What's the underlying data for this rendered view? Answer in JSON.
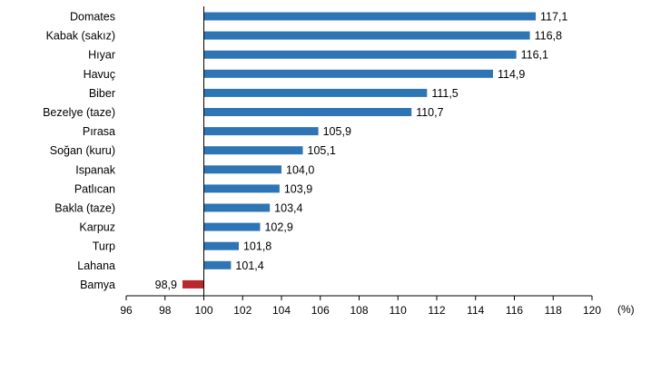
{
  "chart_data": {
    "type": "bar",
    "orientation": "horizontal",
    "baseline": 100,
    "categories": [
      "Domates",
      "Kabak (sakız)",
      "Hıyar",
      "Havuç",
      "Biber",
      "Bezelye (taze)",
      "Pırasa",
      "Soğan (kuru)",
      "Ispanak",
      "Patlıcan",
      "Bakla (taze)",
      "Karpuz",
      "Turp",
      "Lahana",
      "Bamya"
    ],
    "values": [
      117.1,
      116.8,
      116.1,
      114.9,
      111.5,
      110.7,
      105.9,
      105.1,
      104.0,
      103.9,
      103.4,
      102.9,
      101.8,
      101.4,
      98.9
    ],
    "value_labels": [
      "117,1",
      "116,8",
      "116,1",
      "114,9",
      "111,5",
      "110,7",
      "105,9",
      "105,1",
      "104,0",
      "103,9",
      "103,4",
      "102,9",
      "101,8",
      "101,4",
      "98,9"
    ],
    "ticks": [
      96,
      98,
      100,
      102,
      104,
      106,
      108,
      110,
      112,
      114,
      116,
      118,
      120
    ],
    "xlim": [
      96,
      120
    ],
    "unit": "(%)",
    "grid": false,
    "legend": "none",
    "colors": {
      "above": "#2e75b6",
      "below": "#b8282e",
      "axis": "#000000"
    }
  }
}
